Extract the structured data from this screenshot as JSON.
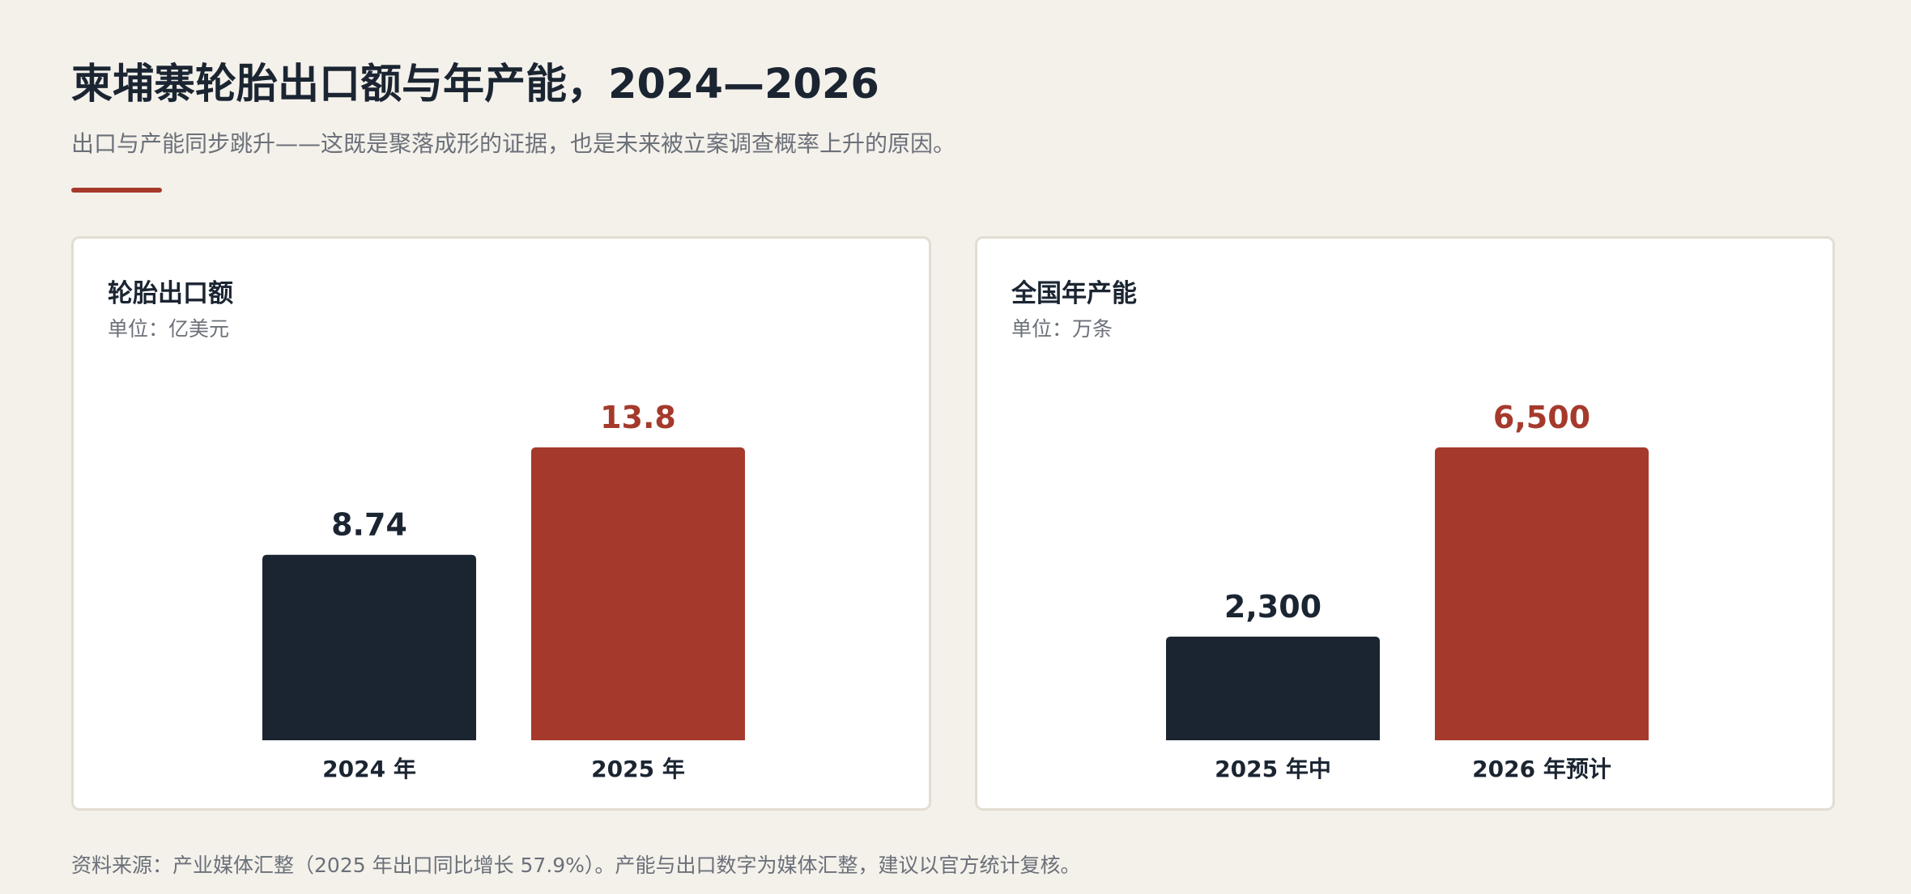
{
  "header": {
    "title": "柬埔寨轮胎出口额与年产能，2024—2026",
    "subtitle": "出口与产能同步跳升——这既是聚落成形的证据，也是未来被立案调查概率上升的原因。"
  },
  "colors": {
    "background": "#f4f1eb",
    "dark_bar": "#1b2532",
    "accent_bar": "#a53a2c",
    "muted_text": "#6b7079"
  },
  "chart_data": [
    {
      "type": "bar",
      "title": "轮胎出口额",
      "unit": "单位：亿美元",
      "categories": [
        "2024 年",
        "2025 年"
      ],
      "values": [
        8.74,
        13.8
      ],
      "value_labels": [
        "8.74",
        "13.8"
      ],
      "bar_colors": [
        "#1b2532",
        "#a53a2c"
      ],
      "ylim": [
        0,
        13.8
      ],
      "grid": false,
      "legend": "none"
    },
    {
      "type": "bar",
      "title": "全国年产能",
      "unit": "单位：万条",
      "categories": [
        "2025 年中",
        "2026 年预计"
      ],
      "values": [
        2300,
        6500
      ],
      "value_labels": [
        "2,300",
        "6,500"
      ],
      "bar_colors": [
        "#1b2532",
        "#a53a2c"
      ],
      "ylim": [
        0,
        6500
      ],
      "grid": false,
      "legend": "none"
    }
  ],
  "footer": {
    "source": "资料来源：产业媒体汇整（2025 年出口同比增长 57.9%）。产能与出口数字为媒体汇整，建议以官方统计复核。"
  }
}
